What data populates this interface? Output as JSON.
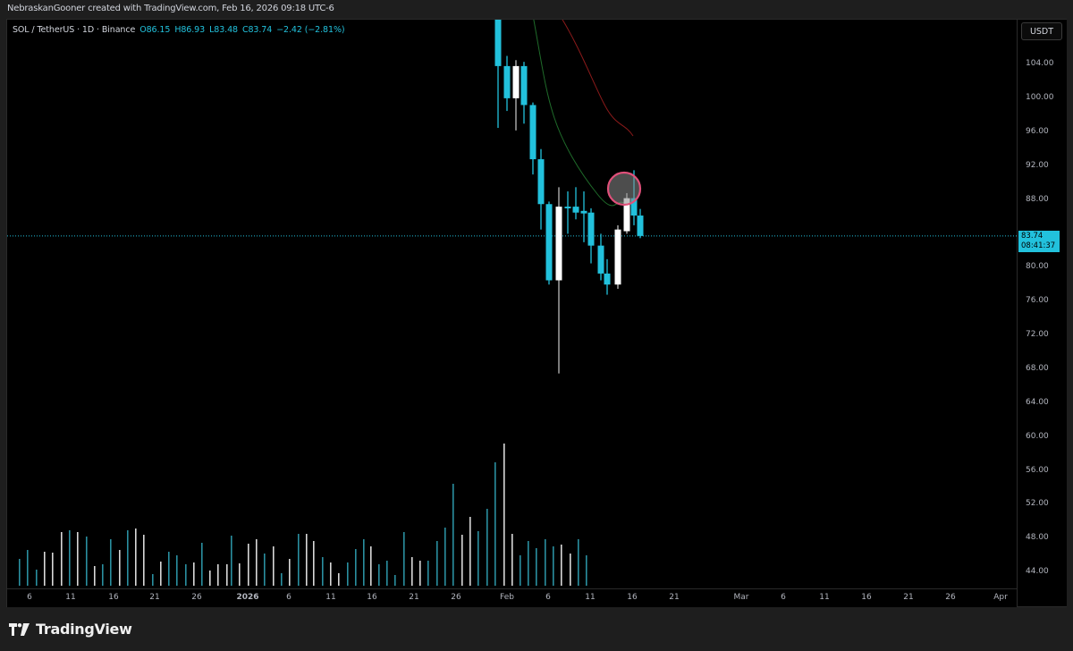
{
  "header": {
    "attribution": "NebraskanGooner created with TradingView.com, Feb 16, 2026 09:18 UTC-6"
  },
  "legend": {
    "symbol": "SOL / TetherUS · 1D · Binance",
    "open": "O86.15",
    "high": "H86.93",
    "low": "L83.48",
    "close": "C83.74",
    "change": "−2.42 (−2.81%)"
  },
  "price_axis": {
    "currency": "USDT",
    "ticks": [
      "104.00",
      "100.00",
      "96.00",
      "92.00",
      "88.00",
      "80.00",
      "76.00",
      "72.00",
      "68.00",
      "64.00",
      "60.00",
      "56.00",
      "52.00",
      "48.00",
      "44.00"
    ],
    "last_price": "83.74",
    "countdown": "08:41:37"
  },
  "time_axis": {
    "ticks": [
      "6",
      "11",
      "16",
      "21",
      "26",
      "2026",
      "6",
      "11",
      "16",
      "21",
      "26",
      "Feb",
      "6",
      "11",
      "16",
      "21",
      "Mar",
      "6",
      "11",
      "16",
      "21",
      "26",
      "Apr"
    ]
  },
  "footer": {
    "brand": "TradingView"
  },
  "colors": {
    "up": "#ffffff",
    "down": "#22c1dc",
    "ema_fast": "#1f6b2a",
    "ema_slow": "#8b1a1a",
    "highlight_ring": "#e0507a",
    "background": "#000000"
  },
  "chart_data": {
    "type": "candlestick",
    "title": "SOL / TetherUS · 1D · Binance",
    "ylabel": "USDT",
    "ylim": [
      42,
      108
    ],
    "x_range": "Dec 2025 – Apr 2026",
    "last_candle": {
      "open": 86.15,
      "high": 86.93,
      "low": 83.48,
      "close": 83.74,
      "change": -2.42,
      "change_pct": -2.81
    },
    "candles": [
      {
        "date": "Jan 28",
        "open": 113.0,
        "high": 113.0,
        "low": 96.5,
        "close": 103.8
      },
      {
        "date": "Jan 29",
        "open": 103.8,
        "high": 105.0,
        "low": 98.5,
        "close": 100.0
      },
      {
        "date": "Jan 30",
        "open": 100.0,
        "high": 104.5,
        "low": 96.2,
        "close": 103.8
      },
      {
        "date": "Jan 31",
        "open": 103.8,
        "high": 104.3,
        "low": 97.0,
        "close": 99.2
      },
      {
        "date": "Feb 1",
        "open": 99.2,
        "high": 99.5,
        "low": 91.0,
        "close": 92.8
      },
      {
        "date": "Feb 2",
        "open": 92.8,
        "high": 94.0,
        "low": 84.5,
        "close": 87.5
      },
      {
        "date": "Feb 3",
        "open": 87.5,
        "high": 87.8,
        "low": 78.0,
        "close": 78.5
      },
      {
        "date": "Feb 5",
        "open": 78.5,
        "high": 89.5,
        "low": 67.5,
        "close": 87.2
      },
      {
        "date": "Feb 6",
        "open": 87.2,
        "high": 89.0,
        "low": 84.0,
        "close": 87.0
      },
      {
        "date": "Feb 7",
        "open": 87.2,
        "high": 89.5,
        "low": 85.7,
        "close": 86.5
      },
      {
        "date": "Feb 8",
        "open": 86.7,
        "high": 89.0,
        "low": 83.0,
        "close": 86.4
      },
      {
        "date": "Feb 9",
        "open": 86.5,
        "high": 87.0,
        "low": 80.5,
        "close": 82.6
      },
      {
        "date": "Feb 10",
        "open": 82.6,
        "high": 84.0,
        "low": 78.5,
        "close": 79.3
      },
      {
        "date": "Feb 11",
        "open": 79.3,
        "high": 81.0,
        "low": 76.8,
        "close": 78.0
      },
      {
        "date": "Feb 12",
        "open": 78.0,
        "high": 85.0,
        "low": 77.5,
        "close": 84.5
      },
      {
        "date": "Feb 14",
        "open": 84.3,
        "high": 88.8,
        "low": 84.0,
        "close": 88.2
      },
      {
        "date": "Feb 15",
        "open": 88.2,
        "high": 91.5,
        "low": 85.0,
        "close": 86.15
      },
      {
        "date": "Feb 16",
        "open": 86.15,
        "high": 86.93,
        "low": 83.48,
        "close": 83.74
      }
    ],
    "series": [
      {
        "name": "EMA fast (green)",
        "values_desc": "descends from ~115 (Jan 31) to ~88.5 (Feb 13)"
      },
      {
        "name": "EMA slow (red)",
        "values_desc": "descends from ~115 (Feb 4) to ~95.5 (Feb 15)"
      }
    ],
    "volume_desc": "Volume bars along bottom; peak on Feb 5, large spikes Jan 29 – Feb 5",
    "annotations": [
      "Circle highlight around Feb 15 candle upper wick near 90-91"
    ],
    "grid": false
  }
}
